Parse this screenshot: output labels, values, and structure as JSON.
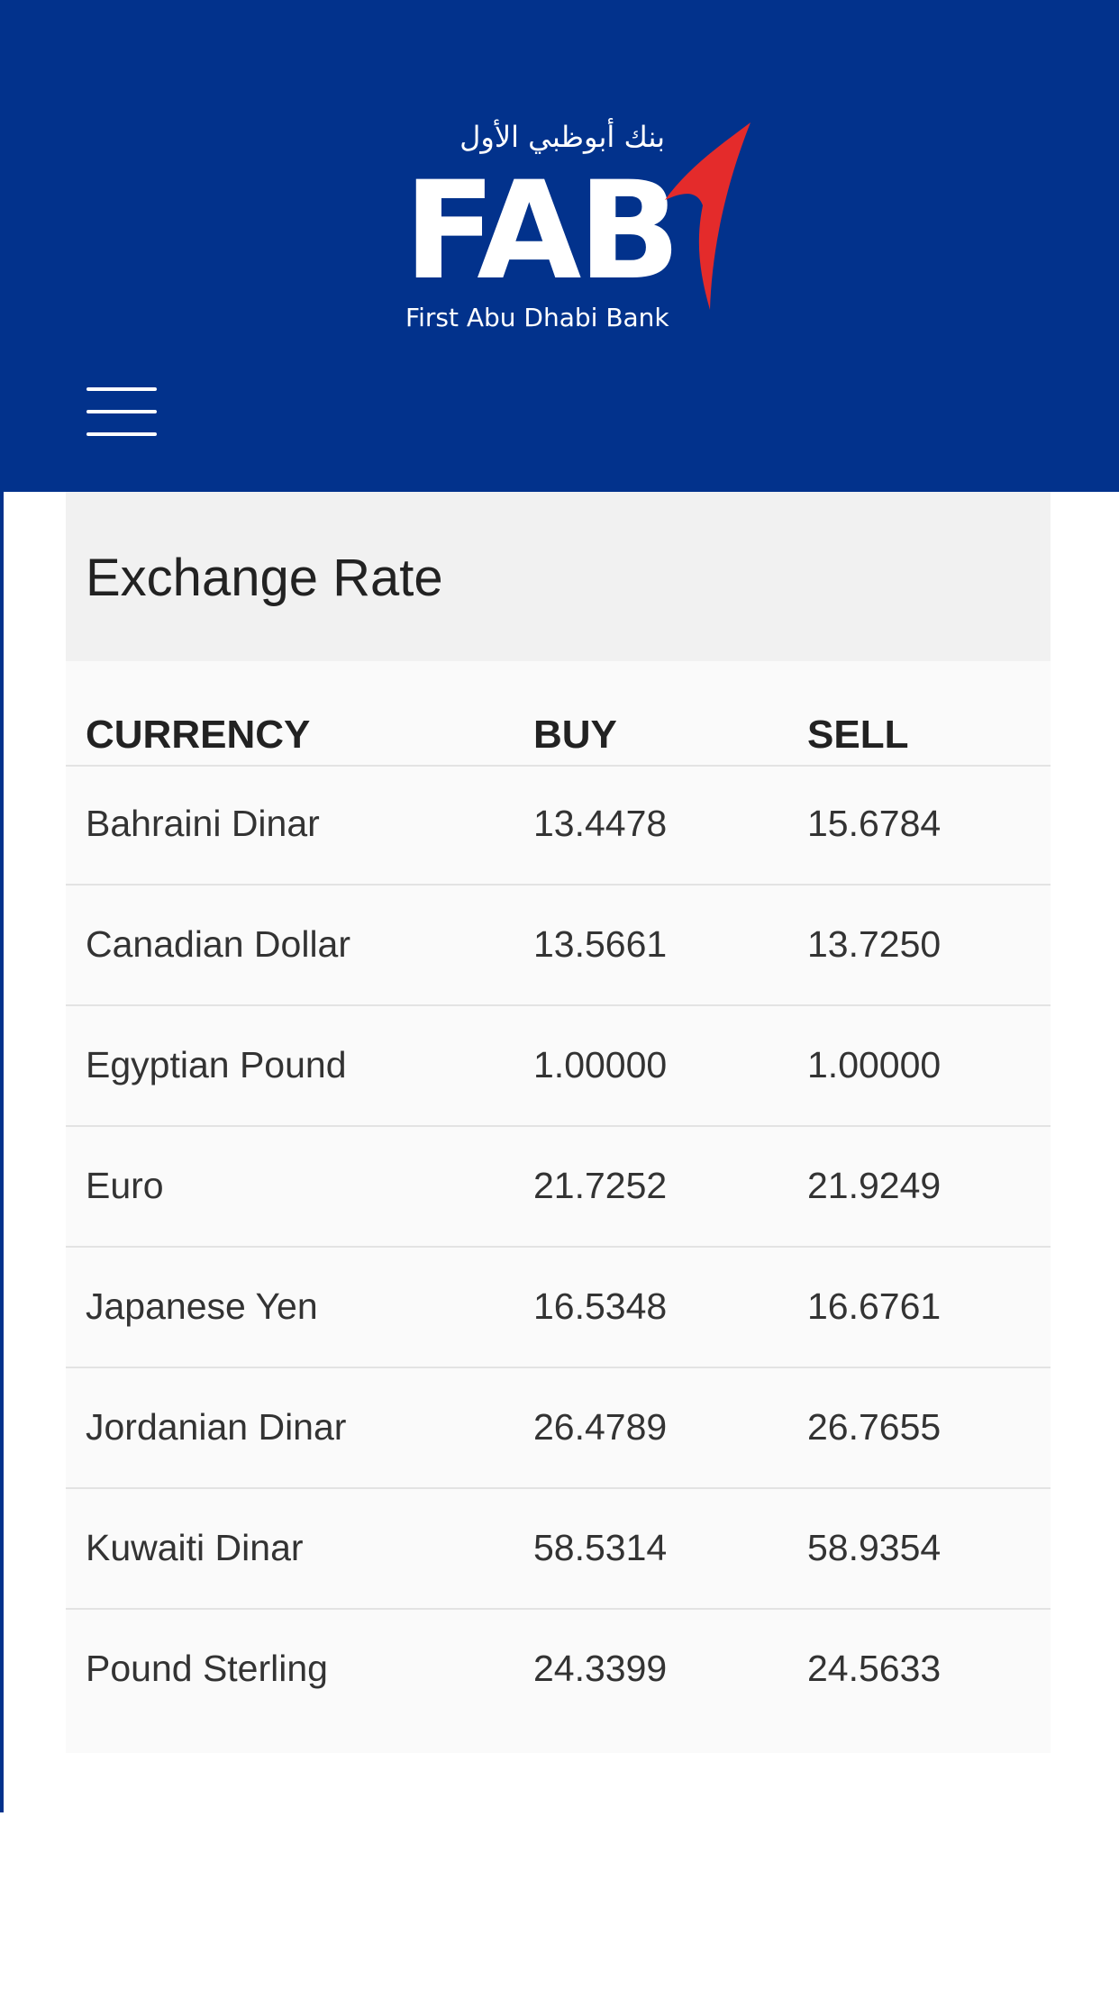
{
  "header": {
    "logo": {
      "arabic_name": "بنك أبوظبي الأول",
      "wordmark": "FAB",
      "tagline": "First Abu Dhabi Bank"
    },
    "menu_icon": "hamburger-menu-icon",
    "background_color": "#02328c"
  },
  "exchange": {
    "title": "Exchange Rate",
    "columns": [
      "CURRENCY",
      "BUY",
      "SELL"
    ],
    "rows": [
      {
        "currency": "Bahraini Dinar",
        "buy": "13.4478",
        "sell": "15.6784"
      },
      {
        "currency": "Canadian Dollar",
        "buy": "13.5661",
        "sell": "13.7250"
      },
      {
        "currency": "Egyptian Pound",
        "buy": "1.00000",
        "sell": "1.00000"
      },
      {
        "currency": "Euro",
        "buy": "21.7252",
        "sell": "21.9249"
      },
      {
        "currency": "Japanese Yen",
        "buy": "16.5348",
        "sell": "16.6761"
      },
      {
        "currency": "Jordanian Dinar",
        "buy": "26.4789",
        "sell": "26.7655"
      },
      {
        "currency": "Kuwaiti Dinar",
        "buy": "58.5314",
        "sell": "58.9354"
      },
      {
        "currency": "Pound Sterling",
        "buy": "24.3399",
        "sell": "24.5633"
      }
    ]
  },
  "colors": {
    "brand_blue": "#02328c",
    "brand_red": "#e42b2b"
  }
}
